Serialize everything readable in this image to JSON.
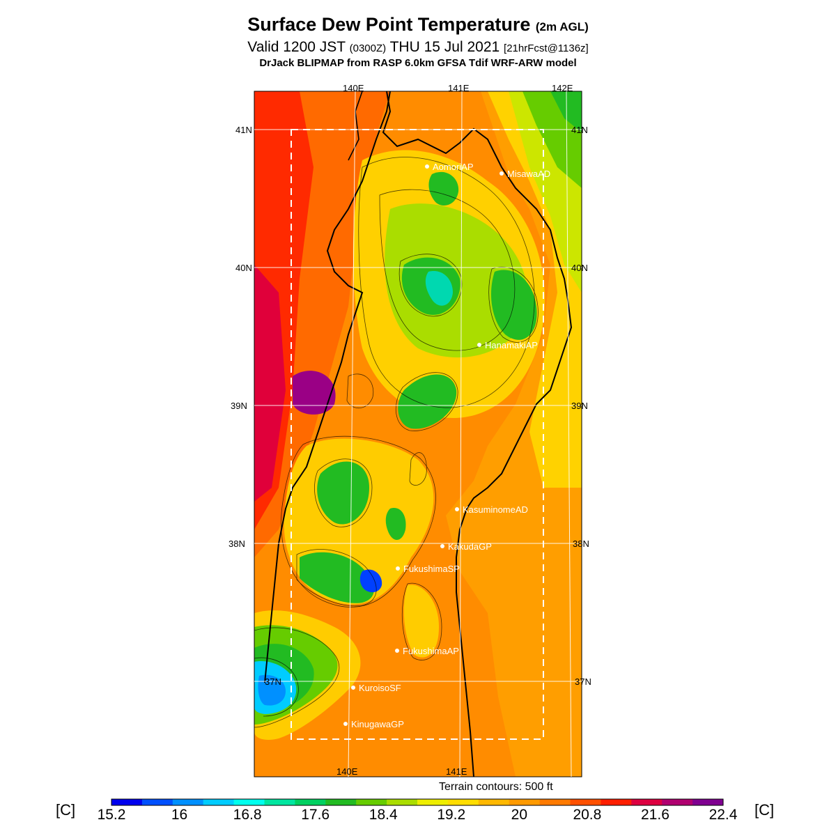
{
  "title": {
    "main": "Surface Dew Point Temperature",
    "main_suffix": "(2m AGL)",
    "valid_pre": "Valid 1200 JST",
    "valid_utc": "(0300Z)",
    "valid_date": "THU 15 Jul 2021",
    "forecast": "[21hrFcst@1136z]",
    "model": "DrJack BLIPMAP from RASP 6.0km GFSA Tdif WRF-ARW model"
  },
  "map": {
    "lon_labels_top": [
      "140E",
      "141E",
      "142E"
    ],
    "lon_labels_bottom": [
      "140E",
      "141E"
    ],
    "lat_labels": [
      "41N",
      "40N",
      "39N",
      "38N",
      "37N"
    ],
    "sites": [
      "AomoriAP",
      "MisawaAD",
      "HanamakiAP",
      "KasuminomeAD",
      "KakudaGP",
      "FukushimaSP",
      "FukushimaAP",
      "KuroisoSF",
      "KinugawaGP"
    ]
  },
  "terrain_note": "Terrain contours: 500 ft",
  "colorbar": {
    "unit": "[C]",
    "ticks": [
      "15.2",
      "16",
      "16.8",
      "17.6",
      "18.4",
      "19.2",
      "20",
      "20.8",
      "21.6",
      "22.4"
    ],
    "colors": [
      "#0000ee",
      "#0050ff",
      "#0090ff",
      "#00ccff",
      "#00ffee",
      "#00e6a0",
      "#00d060",
      "#22bb22",
      "#66cc00",
      "#aadd00",
      "#eeee00",
      "#ffdd00",
      "#ffb800",
      "#ff9a00",
      "#ff7a00",
      "#ff5000",
      "#ff1e00",
      "#dd0040",
      "#b00070",
      "#7f0090"
    ]
  }
}
